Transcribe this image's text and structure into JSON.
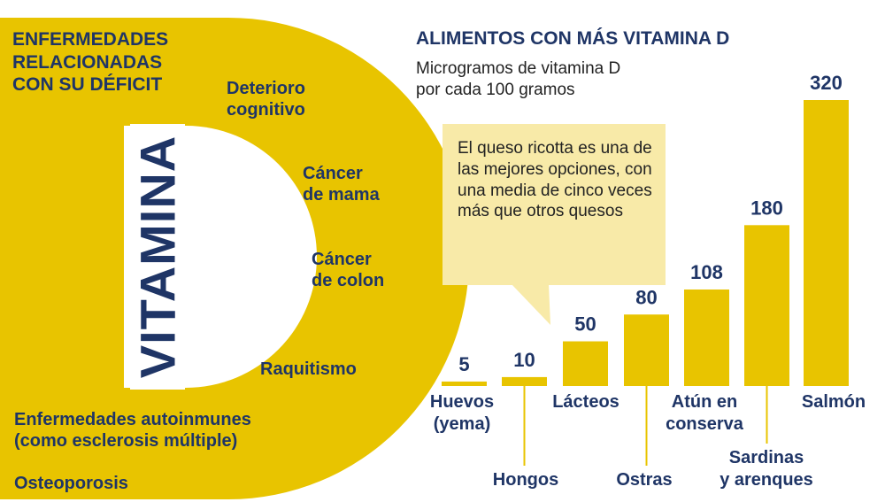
{
  "colors": {
    "accent": "#e8c400",
    "navy": "#1f3566",
    "callout_bg": "#f8eaa8"
  },
  "left": {
    "title_lines": [
      "ENFERMEDADES",
      "RELACIONADAS",
      "CON SU DÉFICIT"
    ],
    "vitamin_word": "VITAMINA",
    "diseases": [
      [
        "Deterioro",
        "cognitivo"
      ],
      [
        "Cáncer",
        "de mama"
      ],
      [
        "Cáncer",
        "de colon"
      ],
      [
        "Raquitismo"
      ],
      [
        "Enfermedades autoinmunes",
        "(como esclerosis múltiple)"
      ],
      [
        "Osteoporosis"
      ]
    ]
  },
  "right": {
    "title": "ALIMENTOS CON MÁS VITAMINA D",
    "subtitle_lines": [
      "Microgramos de vitamina D",
      "por cada 100 gramos"
    ],
    "callout": "El queso ricotta es una de las mejores opciones, con una media de cinco veces más que otros quesos"
  },
  "chart_data": {
    "type": "bar",
    "title": "ALIMENTOS CON MÁS VITAMINA D",
    "ylabel": "Microgramos de vitamina D por cada 100 gramos",
    "categories": [
      [
        "Huevos",
        "(yema)"
      ],
      [
        "Hongos"
      ],
      [
        "Lácteos"
      ],
      [
        "Ostras"
      ],
      [
        "Atún en",
        "conserva"
      ],
      [
        "Sardinas",
        "y arenques"
      ],
      [
        "Salmón"
      ]
    ],
    "values": [
      5,
      10,
      50,
      80,
      108,
      180,
      320
    ],
    "ylim": [
      0,
      320
    ],
    "grid": false,
    "legend": "none"
  }
}
